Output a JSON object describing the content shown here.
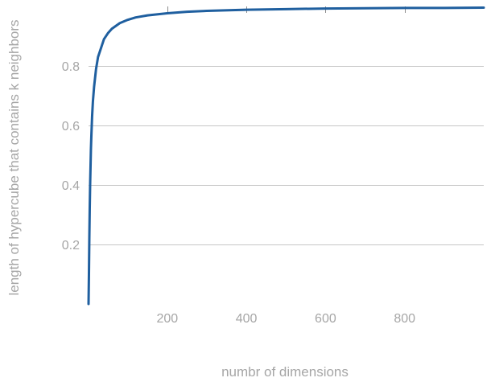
{
  "chart_data": {
    "type": "line",
    "title": "",
    "xlabel": "numbr of dimensions",
    "ylabel": "length of hypercube that contains k neighbors",
    "xlim": [
      1,
      1000
    ],
    "ylim": [
      0,
      1
    ],
    "x_ticks": [
      200,
      400,
      600,
      800
    ],
    "y_ticks": [
      0.2,
      0.4,
      0.6,
      0.8
    ],
    "x_tick_labels": [
      "200",
      "400",
      "600",
      "800"
    ],
    "y_tick_labels": [
      "0.2",
      "0.4",
      "0.6",
      "0.8"
    ],
    "grid": "horizontal",
    "legend": "none",
    "series_color": "#1f5f9f",
    "grid_color": "#c6c6c6",
    "label_color": "#a6a6a6",
    "series": [
      {
        "x": [
          1,
          2,
          3,
          4,
          5,
          6,
          7,
          8,
          10,
          12,
          15,
          20,
          25,
          30,
          40,
          50,
          60,
          80,
          100,
          120,
          150,
          200,
          250,
          300,
          400,
          500,
          600,
          700,
          800,
          900,
          1000
        ],
        "y": [
          0.0,
          0.1,
          0.22,
          0.32,
          0.4,
          0.46,
          0.52,
          0.56,
          0.63,
          0.68,
          0.73,
          0.79,
          0.83,
          0.85,
          0.89,
          0.91,
          0.925,
          0.944,
          0.955,
          0.963,
          0.97,
          0.977,
          0.982,
          0.985,
          0.989,
          0.991,
          0.993,
          0.994,
          0.995,
          0.995,
          0.996
        ]
      }
    ]
  }
}
